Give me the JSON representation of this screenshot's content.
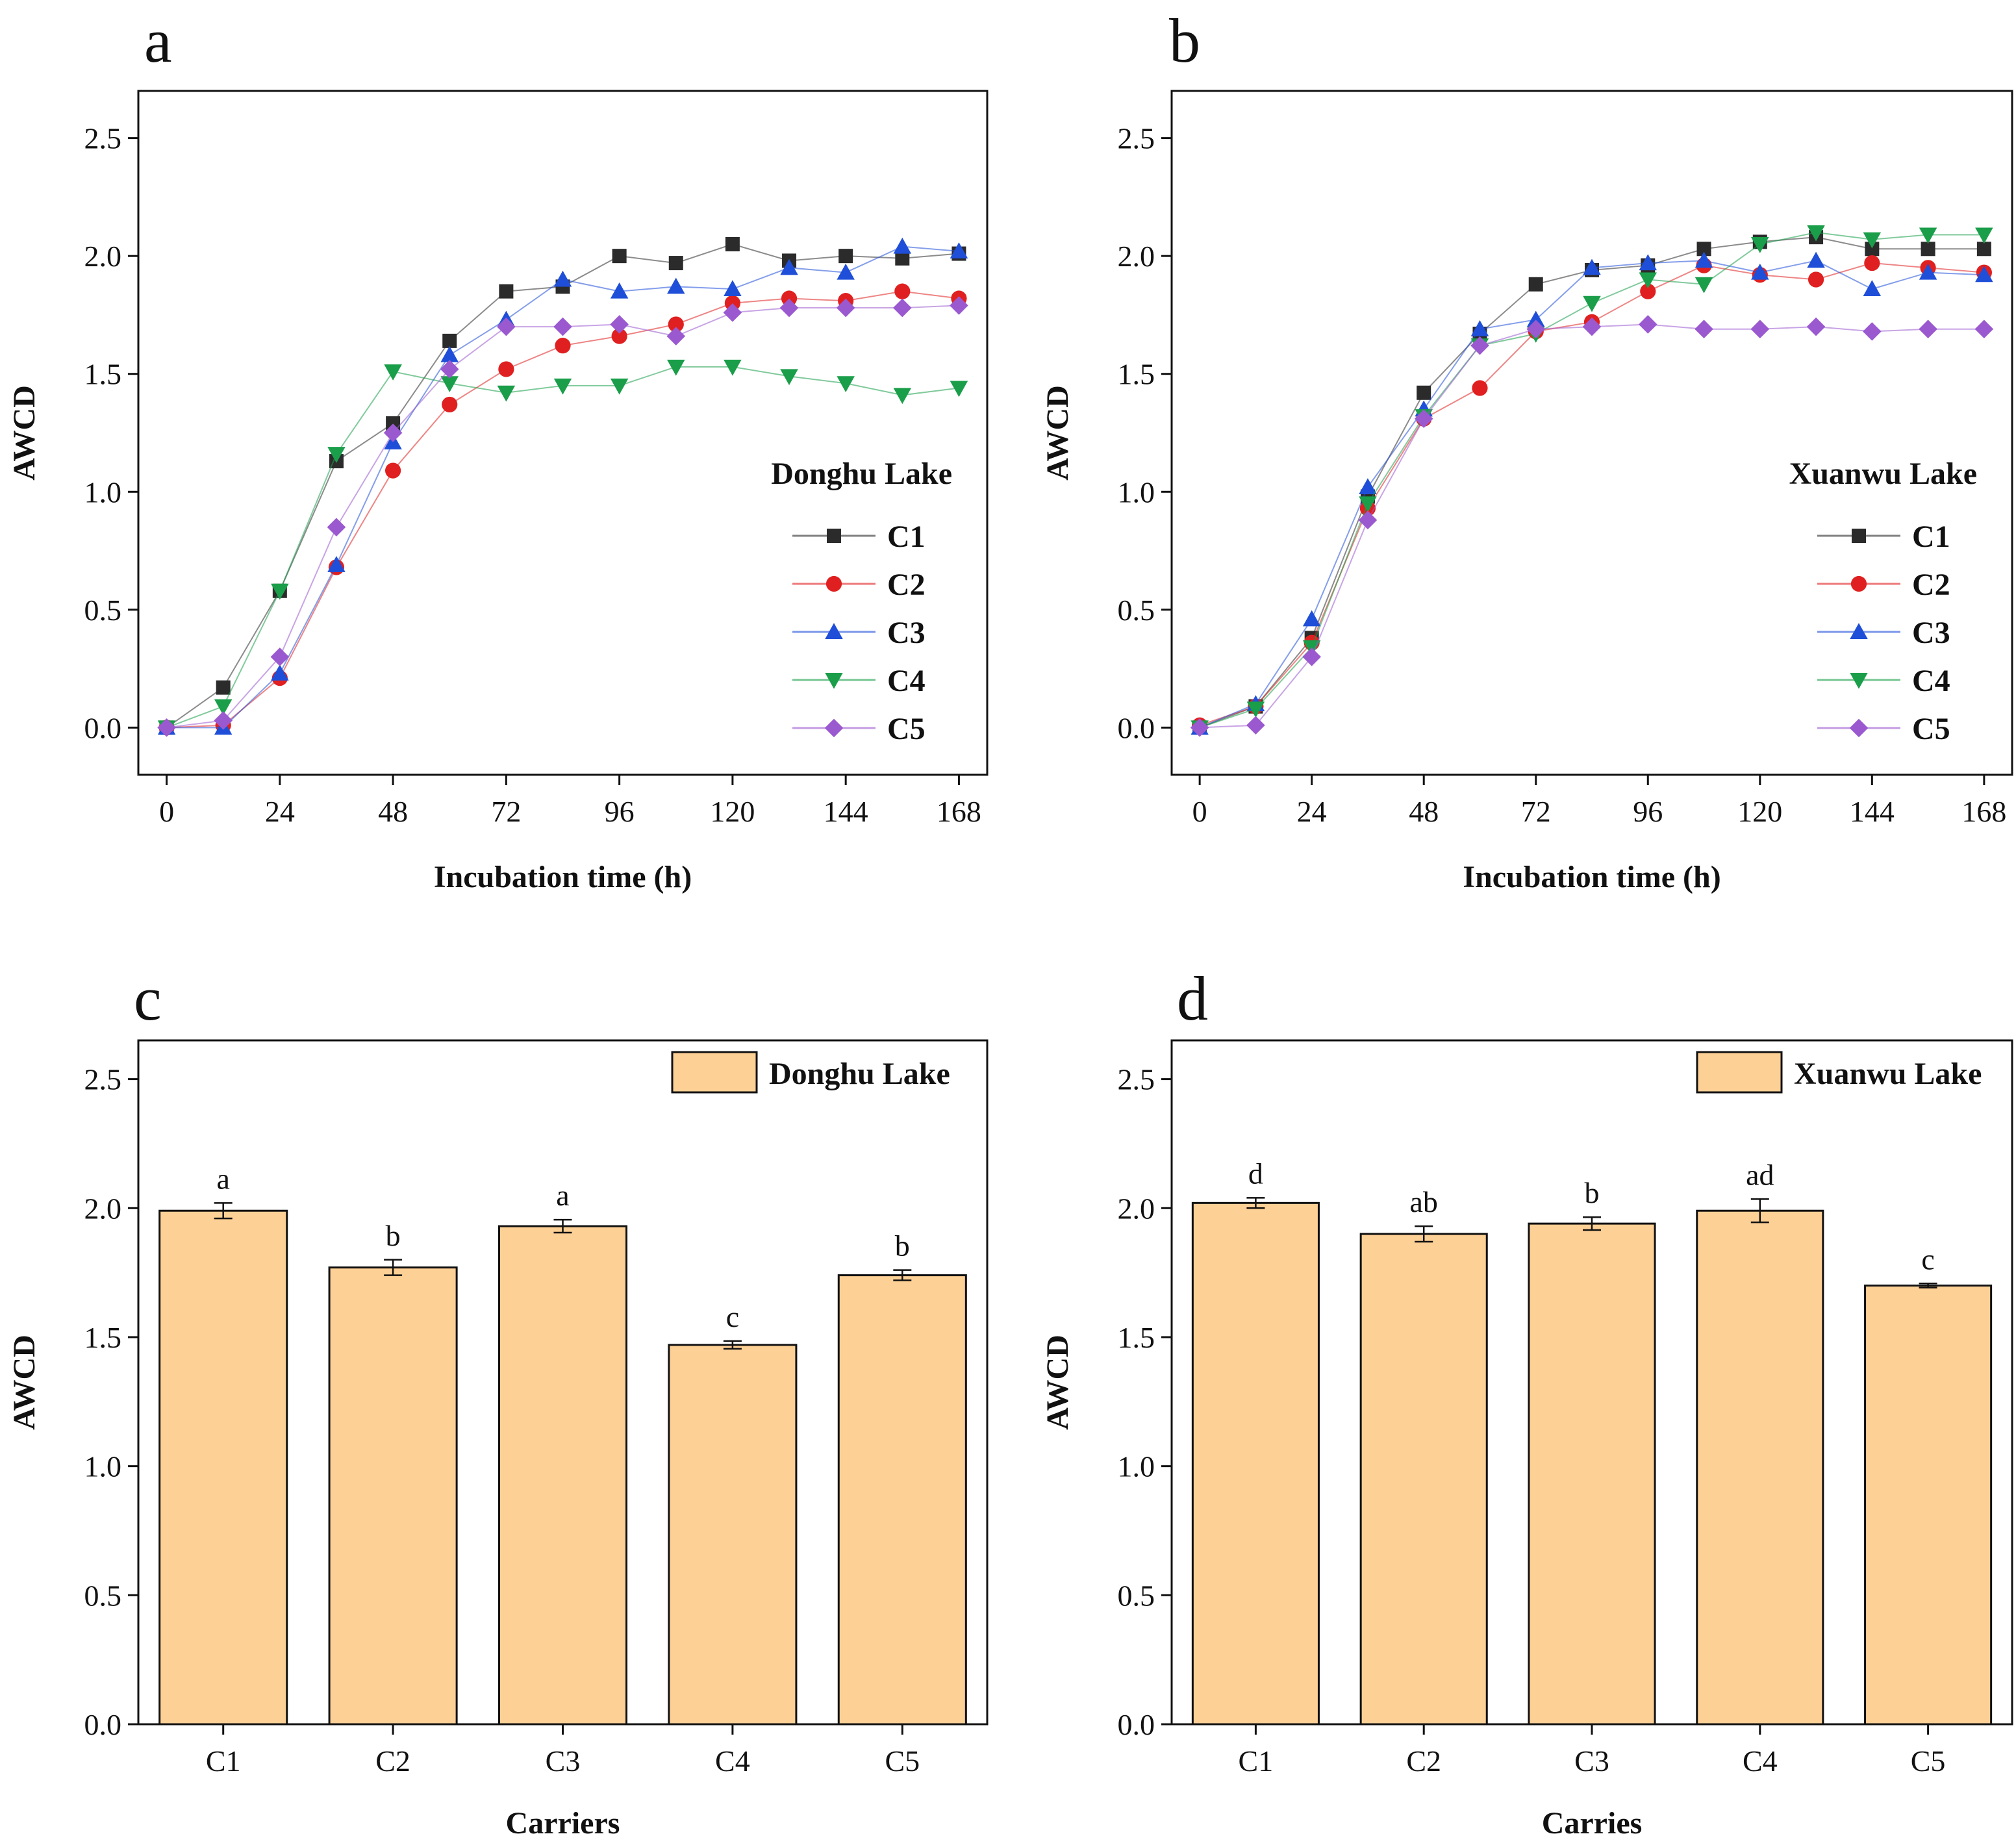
{
  "chart_data": [
    {
      "panel": "a",
      "type": "line",
      "title": "Donghu Lake",
      "xlabel": "Incubation time (h)",
      "ylabel": "AWCD",
      "xlim": [
        -6,
        174
      ],
      "ylim": [
        -0.2,
        2.7
      ],
      "xticks": [
        0,
        24,
        48,
        72,
        96,
        120,
        144,
        168
      ],
      "yticks": [
        0.0,
        0.5,
        1.0,
        1.5,
        2.0,
        2.5
      ],
      "ytick_labels": [
        "0.0",
        "0.5",
        "1.0",
        "1.5",
        "2.0",
        "2.5"
      ],
      "legend_position": "right",
      "x": [
        0,
        12,
        24,
        36,
        48,
        60,
        72,
        84,
        96,
        108,
        120,
        132,
        144,
        156,
        168
      ],
      "series": [
        {
          "name": "C1",
          "color": "#2b2b2b",
          "marker": "square",
          "values": [
            0.0,
            0.17,
            0.58,
            1.13,
            1.29,
            1.64,
            1.85,
            1.87,
            2.0,
            1.97,
            2.05,
            1.98,
            2.0,
            1.99,
            2.01
          ]
        },
        {
          "name": "C2",
          "color": "#e02020",
          "marker": "circle",
          "values": [
            0.0,
            0.01,
            0.21,
            0.68,
            1.09,
            1.37,
            1.52,
            1.62,
            1.66,
            1.71,
            1.8,
            1.82,
            1.81,
            1.85,
            1.82
          ]
        },
        {
          "name": "C3",
          "color": "#1f4fd8",
          "marker": "triangle-up",
          "values": [
            0.0,
            0.0,
            0.23,
            0.69,
            1.21,
            1.58,
            1.73,
            1.9,
            1.85,
            1.87,
            1.86,
            1.95,
            1.93,
            2.04,
            2.02
          ]
        },
        {
          "name": "C4",
          "color": "#1a9e4a",
          "marker": "triangle-down",
          "values": [
            0.0,
            0.09,
            0.58,
            1.16,
            1.51,
            1.46,
            1.42,
            1.45,
            1.45,
            1.53,
            1.53,
            1.49,
            1.46,
            1.41,
            1.44
          ]
        },
        {
          "name": "C5",
          "color": "#9b59d0",
          "marker": "diamond",
          "values": [
            0.0,
            0.03,
            0.3,
            0.85,
            1.25,
            1.52,
            1.7,
            1.7,
            1.71,
            1.66,
            1.76,
            1.78,
            1.78,
            1.78,
            1.79
          ]
        }
      ]
    },
    {
      "panel": "b",
      "type": "line",
      "title": "Xuanwu Lake",
      "xlabel": "Incubation time (h)",
      "ylabel": "AWCD",
      "xlim": [
        -6,
        174
      ],
      "ylim": [
        -0.2,
        2.7
      ],
      "xticks": [
        0,
        24,
        48,
        72,
        96,
        120,
        144,
        168
      ],
      "yticks": [
        0.0,
        0.5,
        1.0,
        1.5,
        2.0,
        2.5
      ],
      "ytick_labels": [
        "0.0",
        "0.5",
        "1.0",
        "1.5",
        "2.0",
        "2.5"
      ],
      "legend_position": "right",
      "x": [
        0,
        12,
        24,
        36,
        48,
        60,
        72,
        84,
        96,
        108,
        120,
        132,
        144,
        156,
        168
      ],
      "series": [
        {
          "name": "C1",
          "color": "#2b2b2b",
          "marker": "square",
          "values": [
            0.0,
            0.09,
            0.38,
            0.98,
            1.42,
            1.67,
            1.88,
            1.94,
            1.96,
            2.03,
            2.06,
            2.08,
            2.03,
            2.03,
            2.03
          ]
        },
        {
          "name": "C2",
          "color": "#e02020",
          "marker": "circle",
          "values": [
            0.01,
            0.09,
            0.36,
            0.93,
            1.31,
            1.44,
            1.68,
            1.72,
            1.85,
            1.96,
            1.92,
            1.9,
            1.97,
            1.95,
            1.93
          ]
        },
        {
          "name": "C3",
          "color": "#1f4fd8",
          "marker": "triangle-up",
          "values": [
            0.0,
            0.1,
            0.46,
            1.02,
            1.35,
            1.69,
            1.73,
            1.95,
            1.97,
            1.98,
            1.93,
            1.98,
            1.86,
            1.93,
            1.92
          ]
        },
        {
          "name": "C4",
          "color": "#1a9e4a",
          "marker": "triangle-down",
          "values": [
            0.0,
            0.08,
            0.34,
            0.95,
            1.32,
            1.62,
            1.67,
            1.8,
            1.9,
            1.88,
            2.05,
            2.1,
            2.07,
            2.09,
            2.09
          ]
        },
        {
          "name": "C5",
          "color": "#9b59d0",
          "marker": "diamond",
          "values": [
            0.0,
            0.01,
            0.3,
            0.88,
            1.31,
            1.62,
            1.69,
            1.7,
            1.71,
            1.69,
            1.69,
            1.7,
            1.68,
            1.69,
            1.69
          ]
        }
      ]
    },
    {
      "panel": "c",
      "type": "bar",
      "title": "Donghu Lake",
      "xlabel": "Carriers",
      "ylabel": "AWCD",
      "ylim": [
        0,
        2.65
      ],
      "yticks": [
        0.0,
        0.5,
        1.0,
        1.5,
        2.0,
        2.5
      ],
      "ytick_labels": [
        "0.0",
        "0.5",
        "1.0",
        "1.5",
        "2.0",
        "2.5"
      ],
      "bar_color": "#fdd095",
      "legend_position": "top-right",
      "categories": [
        "C1",
        "C2",
        "C3",
        "C4",
        "C5"
      ],
      "values": [
        1.99,
        1.77,
        1.93,
        1.47,
        1.74
      ],
      "errors": [
        0.03,
        0.03,
        0.025,
        0.015,
        0.02
      ],
      "annotations": [
        "a",
        "b",
        "a",
        "c",
        "b"
      ]
    },
    {
      "panel": "d",
      "type": "bar",
      "title": "Xuanwu Lake",
      "xlabel": "Carries",
      "ylabel": "AWCD",
      "ylim": [
        0,
        2.65
      ],
      "yticks": [
        0.0,
        0.5,
        1.0,
        1.5,
        2.0,
        2.5
      ],
      "ytick_labels": [
        "0.0",
        "0.5",
        "1.0",
        "1.5",
        "2.0",
        "2.5"
      ],
      "bar_color": "#fdd095",
      "legend_position": "top-right",
      "categories": [
        "C1",
        "C2",
        "C3",
        "C4",
        "C5"
      ],
      "values": [
        2.02,
        1.9,
        1.94,
        1.99,
        1.7
      ],
      "errors": [
        0.02,
        0.03,
        0.025,
        0.045,
        0.008
      ],
      "annotations": [
        "d",
        "ab",
        "b",
        "ad",
        "c"
      ]
    }
  ]
}
